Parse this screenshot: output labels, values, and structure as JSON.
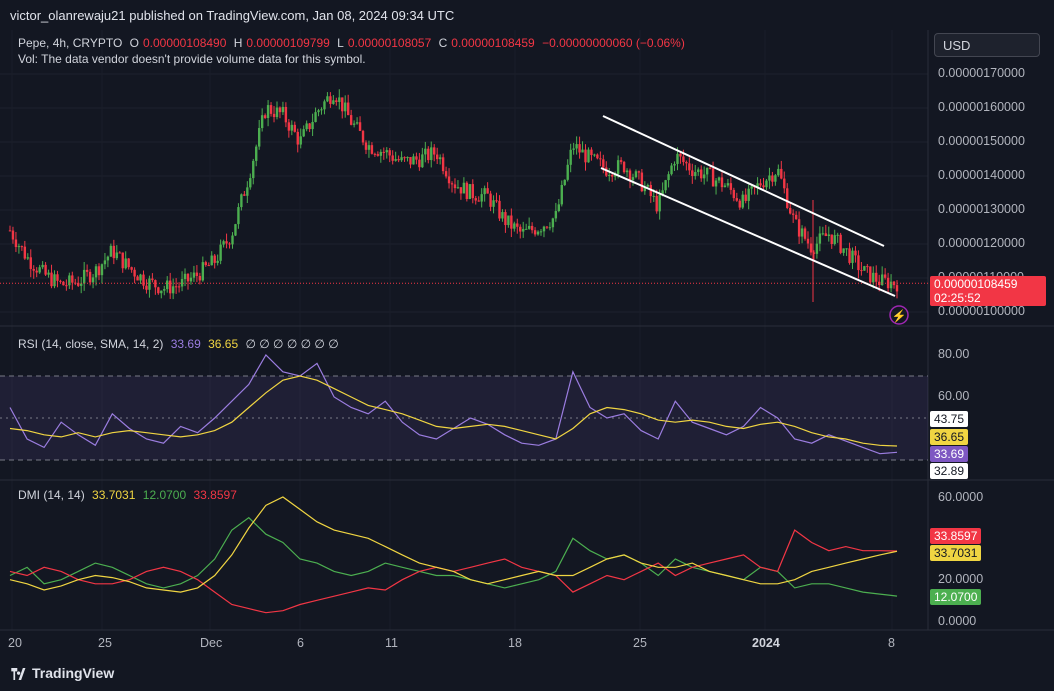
{
  "publisher": "victor_olanrewaju21 published on TradingView.com, Jan 08, 2024 09:34 UTC",
  "currency_button": "USD",
  "footer_brand": "TradingView",
  "price_pane": {
    "symbol": "Pepe, 4h, CRYPTO",
    "o_label": "O",
    "o_value": "0.00000108490",
    "h_label": "H",
    "h_value": "0.00000109799",
    "l_label": "L",
    "l_value": "0.00000108057",
    "c_label": "C",
    "c_value": "0.00000108459",
    "change": "−0.00000000060 (−0.06%)",
    "vol_note": "Vol: The data vendor doesn't provide volume data for this symbol.",
    "last_price_tag": "0.00000108459",
    "countdown": "02:25:52",
    "last_price": 1.08459e-06
  },
  "rsi_pane": {
    "label": "RSI (14, close, SMA, 14, 2)",
    "rsi_value": "33.69",
    "sma_value": "36.65",
    "hidden_markers": "∅ ∅ ∅ ∅ ∅ ∅ ∅",
    "tag_upper": "43.75",
    "tag_sma": "36.65",
    "tag_rsi": "33.69",
    "tag_lower": "32.89"
  },
  "dmi_pane": {
    "label": "DMI (14, 14)",
    "adx_value": "33.7031",
    "plus_di_value": "12.0700",
    "minus_di_value": "33.8597",
    "tag_minus": "33.8597",
    "tag_adx": "33.7031",
    "tag_plus": "12.0700"
  },
  "colors": {
    "bg": "#131722",
    "up": "#4caf50",
    "down": "#f23645",
    "rsi": "#9b7de0",
    "rsi_sma": "#f0d542",
    "adx": "#f0d542",
    "plus_di": "#4caf50",
    "minus_di": "#f23645",
    "channel": "#ffffff"
  },
  "chart_data": [
    {
      "type": "candlestick",
      "title": "Pepe, 4h, CRYPTO",
      "y_tick_labels": [
        "0.00000170000",
        "0.00000160000",
        "0.00000150000",
        "0.00000140000",
        "0.00000130000",
        "0.00000120000",
        "0.00000110000",
        "0.00000100000"
      ],
      "y_ticks": [
        1.7e-06,
        1.6e-06,
        1.5e-06,
        1.4e-06,
        1.3e-06,
        1.2e-06,
        1.1e-06,
        1e-06
      ],
      "ylim": [
        9.8e-07,
        1.75e-06
      ],
      "x_tick_labels": [
        "20",
        "25",
        "Dec",
        "6",
        "11",
        "18",
        "25",
        "2024",
        "8"
      ],
      "annotation": "descending parallel channel (white lines) from ~Dec 22 to Jan 8",
      "close_path": [
        1.24,
        1.16,
        1.11,
        1.08,
        1.09,
        1.12,
        1.18,
        1.13,
        1.09,
        1.07,
        1.08,
        1.11,
        1.15,
        1.23,
        1.4,
        1.6,
        1.58,
        1.5,
        1.59,
        1.65,
        1.56,
        1.49,
        1.47,
        1.44,
        1.45,
        1.47,
        1.38,
        1.35,
        1.34,
        1.27,
        1.23,
        1.25,
        1.28,
        1.49,
        1.45,
        1.42,
        1.43,
        1.38,
        1.31,
        1.46,
        1.42,
        1.4,
        1.37,
        1.32,
        1.38,
        1.42,
        1.26,
        1.19,
        1.23,
        1.18,
        1.12,
        1.09,
        1.085
      ]
    },
    {
      "type": "line",
      "title": "RSI (14, close, SMA, 14, 2)",
      "y_tick_labels": [
        "80.00",
        "60.00"
      ],
      "band": [
        30,
        70
      ],
      "ylim": [
        28,
        86
      ],
      "series": [
        {
          "name": "RSI",
          "values": [
            55,
            40,
            36,
            48,
            42,
            37,
            52,
            45,
            40,
            38,
            46,
            43,
            50,
            58,
            66,
            80,
            72,
            70,
            76,
            60,
            55,
            52,
            58,
            48,
            42,
            40,
            45,
            50,
            47,
            42,
            38,
            37,
            40,
            72,
            55,
            50,
            52,
            44,
            40,
            58,
            48,
            45,
            42,
            46,
            55,
            50,
            40,
            38,
            42,
            39,
            36,
            33,
            33.69
          ]
        },
        {
          "name": "SMA",
          "values": [
            45,
            44,
            42,
            41,
            43,
            41,
            43,
            44,
            43,
            42,
            41,
            42,
            44,
            48,
            55,
            62,
            68,
            70,
            68,
            64,
            60,
            56,
            54,
            52,
            49,
            46,
            45,
            46,
            47,
            46,
            44,
            42,
            40,
            45,
            52,
            55,
            54,
            52,
            49,
            48,
            49,
            48,
            46,
            45,
            47,
            48,
            46,
            43,
            41,
            40,
            38,
            37,
            36.65
          ]
        }
      ]
    },
    {
      "type": "line",
      "title": "DMI (14, 14)",
      "y_tick_labels": [
        "60.0000",
        "20.0000",
        "0.0000"
      ],
      "ylim": [
        0,
        64
      ],
      "series": [
        {
          "name": "ADX",
          "values": [
            20,
            18,
            15,
            17,
            20,
            22,
            21,
            19,
            16,
            15,
            14,
            16,
            22,
            32,
            45,
            56,
            60,
            54,
            48,
            44,
            42,
            40,
            36,
            32,
            28,
            26,
            24,
            20,
            18,
            20,
            22,
            24,
            22,
            22,
            26,
            30,
            32,
            28,
            26,
            26,
            28,
            24,
            22,
            20,
            18,
            18,
            20,
            24,
            26,
            28,
            30,
            32,
            33.7031
          ]
        },
        {
          "name": "+DI",
          "values": [
            22,
            26,
            18,
            20,
            24,
            28,
            26,
            22,
            18,
            16,
            18,
            22,
            30,
            44,
            50,
            42,
            38,
            30,
            28,
            24,
            22,
            24,
            28,
            26,
            24,
            22,
            22,
            20,
            18,
            16,
            18,
            20,
            24,
            40,
            34,
            30,
            32,
            28,
            22,
            30,
            26,
            24,
            22,
            20,
            26,
            24,
            16,
            18,
            18,
            16,
            14,
            13,
            12.07
          ]
        },
        {
          "name": "-DI",
          "values": [
            24,
            22,
            26,
            24,
            20,
            18,
            18,
            20,
            24,
            26,
            24,
            20,
            14,
            8,
            6,
            4,
            5,
            8,
            10,
            12,
            14,
            16,
            15,
            20,
            24,
            26,
            24,
            26,
            28,
            30,
            26,
            24,
            22,
            14,
            18,
            22,
            20,
            24,
            28,
            22,
            26,
            28,
            30,
            32,
            26,
            24,
            44,
            38,
            34,
            36,
            34,
            34,
            33.8597
          ]
        }
      ]
    }
  ]
}
